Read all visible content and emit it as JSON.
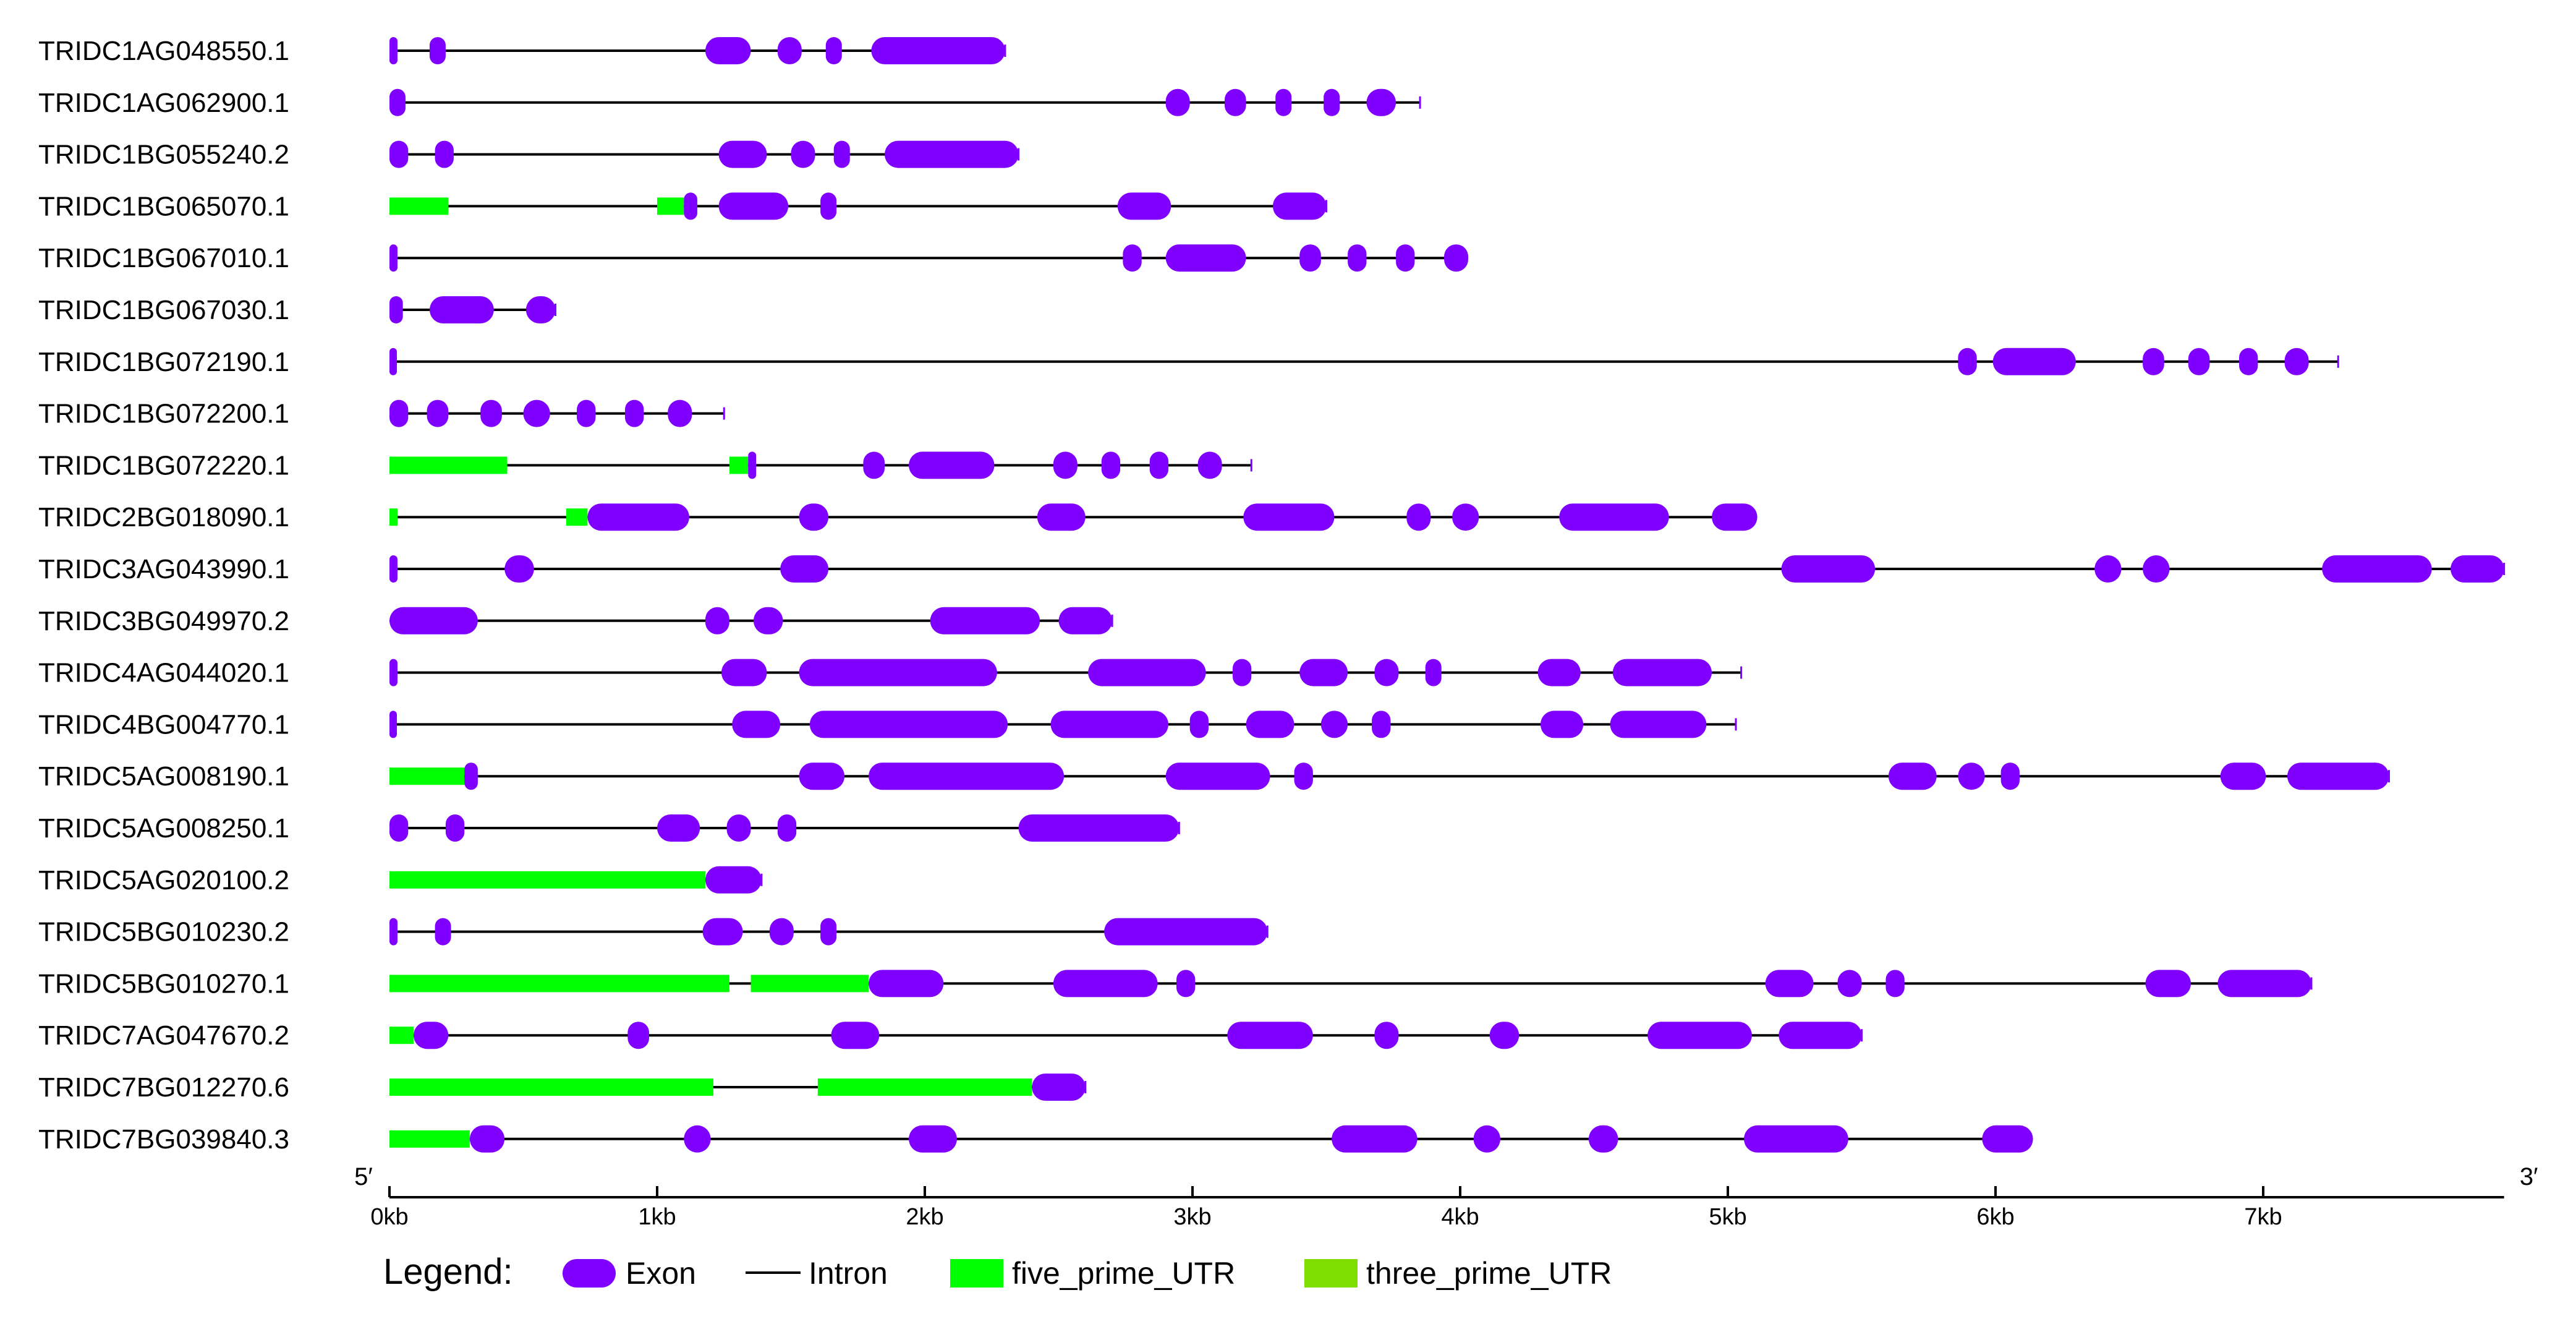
{
  "colors": {
    "exon": "#8000ff",
    "intron": "#000000",
    "five_prime_utr": "#00ff00",
    "three_prime_utr": "#7fdd00"
  },
  "axis": {
    "min_kb": 0,
    "max_kb": 7.9,
    "ticks": [
      {
        "value": 0,
        "label": "0kb"
      },
      {
        "value": 1,
        "label": "1kb"
      },
      {
        "value": 2,
        "label": "2kb"
      },
      {
        "value": 3,
        "label": "3kb"
      },
      {
        "value": 4,
        "label": "4kb"
      },
      {
        "value": 5,
        "label": "5kb"
      },
      {
        "value": 6,
        "label": "6kb"
      },
      {
        "value": 7,
        "label": "7kb"
      }
    ],
    "left_end_label": "5′",
    "right_end_label": "3′"
  },
  "legend": {
    "title": "Legend:",
    "items": [
      {
        "key": "exon",
        "label": "Exon",
        "icon": "exon-swatch"
      },
      {
        "key": "intron",
        "label": "Intron",
        "icon": "intron-line"
      },
      {
        "key": "five_prime_utr",
        "label": "five_prime_UTR",
        "icon": "utr5-swatch"
      },
      {
        "key": "three_prime_utr",
        "label": "three_prime_UTR",
        "icon": "utr3-swatch"
      }
    ]
  },
  "genes": [
    {
      "name": "TRIDC1AG048550.1",
      "length": 2.3,
      "utr5": [],
      "exons": [
        [
          0,
          0.03
        ],
        [
          0.15,
          0.21
        ],
        [
          1.18,
          1.35
        ],
        [
          1.45,
          1.54
        ],
        [
          1.63,
          1.69
        ],
        [
          1.8,
          2.3
        ]
      ]
    },
    {
      "name": "TRIDC1AG062900.1",
      "length": 3.85,
      "utr5": [],
      "exons": [
        [
          0,
          0.06
        ],
        [
          2.9,
          2.99
        ],
        [
          3.12,
          3.2
        ],
        [
          3.31,
          3.37
        ],
        [
          3.49,
          3.55
        ],
        [
          3.65,
          3.76
        ]
      ]
    },
    {
      "name": "TRIDC1BG055240.2",
      "length": 2.35,
      "utr5": [],
      "exons": [
        [
          0,
          0.07
        ],
        [
          0.17,
          0.24
        ],
        [
          1.23,
          1.41
        ],
        [
          1.5,
          1.59
        ],
        [
          1.66,
          1.72
        ],
        [
          1.85,
          2.35
        ]
      ]
    },
    {
      "name": "TRIDC1BG065070.1",
      "length": 3.5,
      "utr5": [
        [
          0,
          0.22
        ],
        [
          1.0,
          1.1
        ]
      ],
      "exons": [
        [
          1.1,
          1.15
        ],
        [
          1.23,
          1.49
        ],
        [
          1.61,
          1.67
        ],
        [
          2.72,
          2.92
        ],
        [
          3.3,
          3.5
        ]
      ]
    },
    {
      "name": "TRIDC1BG067010.1",
      "length": 4.0,
      "utr5": [],
      "exons": [
        [
          0,
          0.03
        ],
        [
          2.74,
          2.81
        ],
        [
          2.9,
          3.2
        ],
        [
          3.4,
          3.48
        ],
        [
          3.58,
          3.65
        ],
        [
          3.76,
          3.83
        ],
        [
          3.94,
          4.03
        ]
      ]
    },
    {
      "name": "TRIDC1BG067030.1",
      "length": 0.62,
      "utr5": [],
      "exons": [
        [
          0,
          0.05
        ],
        [
          0.15,
          0.39
        ],
        [
          0.51,
          0.62
        ]
      ]
    },
    {
      "name": "TRIDC1BG072190.1",
      "length": 7.28,
      "utr5": [],
      "exons": [
        [
          0,
          0.01
        ],
        [
          5.86,
          5.93
        ],
        [
          5.99,
          6.3
        ],
        [
          6.55,
          6.63
        ],
        [
          6.72,
          6.8
        ],
        [
          6.91,
          6.98
        ],
        [
          7.08,
          7.17
        ]
      ]
    },
    {
      "name": "TRIDC1BG072200.1",
      "length": 1.25,
      "utr5": [],
      "exons": [
        [
          0,
          0.07
        ],
        [
          0.14,
          0.22
        ],
        [
          0.34,
          0.42
        ],
        [
          0.5,
          0.6
        ],
        [
          0.7,
          0.77
        ],
        [
          0.88,
          0.95
        ],
        [
          1.04,
          1.13
        ]
      ]
    },
    {
      "name": "TRIDC1BG072220.1",
      "length": 3.22,
      "utr5": [
        [
          0,
          0.44
        ],
        [
          1.27,
          1.34
        ]
      ],
      "exons": [
        [
          1.34,
          1.37
        ],
        [
          1.77,
          1.85
        ],
        [
          1.94,
          2.26
        ],
        [
          2.48,
          2.57
        ],
        [
          2.66,
          2.73
        ],
        [
          2.84,
          2.91
        ],
        [
          3.02,
          3.11
        ]
      ]
    },
    {
      "name": "TRIDC2BG018090.1",
      "length": 5.1,
      "utr5": [
        [
          0,
          0.03
        ],
        [
          0.66,
          0.74
        ]
      ],
      "exons": [
        [
          0.74,
          1.12
        ],
        [
          1.53,
          1.64
        ],
        [
          2.42,
          2.6
        ],
        [
          3.19,
          3.53
        ],
        [
          3.8,
          3.89
        ],
        [
          3.97,
          4.07
        ],
        [
          4.37,
          4.78
        ],
        [
          4.94,
          5.11
        ]
      ]
    },
    {
      "name": "TRIDC3AG043990.1",
      "length": 7.9,
      "utr5": [],
      "exons": [
        [
          0,
          0.03
        ],
        [
          0.43,
          0.54
        ],
        [
          1.46,
          1.64
        ],
        [
          5.2,
          5.55
        ],
        [
          6.37,
          6.47
        ],
        [
          6.55,
          6.65
        ],
        [
          7.22,
          7.63
        ],
        [
          7.7,
          7.9
        ]
      ]
    },
    {
      "name": "TRIDC3BG049970.2",
      "length": 2.7,
      "utr5": [],
      "exons": [
        [
          0,
          0.33
        ],
        [
          1.18,
          1.27
        ],
        [
          1.36,
          1.47
        ],
        [
          2.02,
          2.43
        ],
        [
          2.5,
          2.7
        ]
      ]
    },
    {
      "name": "TRIDC4AG044020.1",
      "length": 5.05,
      "utr5": [],
      "exons": [
        [
          0,
          0.03
        ],
        [
          1.24,
          1.41
        ],
        [
          1.53,
          2.27
        ],
        [
          2.61,
          3.05
        ],
        [
          3.15,
          3.22
        ],
        [
          3.4,
          3.58
        ],
        [
          3.68,
          3.77
        ],
        [
          3.87,
          3.93
        ],
        [
          4.29,
          4.45
        ],
        [
          4.57,
          4.94
        ]
      ]
    },
    {
      "name": "TRIDC4BG004770.1",
      "length": 5.03,
      "utr5": [],
      "exons": [
        [
          0,
          0.01
        ],
        [
          1.28,
          1.46
        ],
        [
          1.57,
          2.31
        ],
        [
          2.47,
          2.91
        ],
        [
          2.99,
          3.06
        ],
        [
          3.2,
          3.38
        ],
        [
          3.48,
          3.58
        ],
        [
          3.67,
          3.74
        ],
        [
          4.3,
          4.46
        ],
        [
          4.56,
          4.92
        ]
      ]
    },
    {
      "name": "TRIDC5AG008190.1",
      "length": 7.47,
      "utr5": [
        [
          0,
          0.28
        ]
      ],
      "exons": [
        [
          0.28,
          0.33
        ],
        [
          1.53,
          1.7
        ],
        [
          1.79,
          2.52
        ],
        [
          2.9,
          3.29
        ],
        [
          3.38,
          3.45
        ],
        [
          5.6,
          5.78
        ],
        [
          5.86,
          5.96
        ],
        [
          6.02,
          6.09
        ],
        [
          6.84,
          7.01
        ],
        [
          7.09,
          7.47
        ]
      ]
    },
    {
      "name": "TRIDC5AG008250.1",
      "length": 2.95,
      "utr5": [],
      "exons": [
        [
          0,
          0.07
        ],
        [
          0.21,
          0.28
        ],
        [
          1.0,
          1.16
        ],
        [
          1.26,
          1.35
        ],
        [
          1.45,
          1.52
        ],
        [
          2.35,
          2.95
        ]
      ]
    },
    {
      "name": "TRIDC5AG020100.2",
      "length": 1.39,
      "utr5": [
        [
          0,
          1.18
        ]
      ],
      "exons": [
        [
          1.18,
          1.39
        ]
      ]
    },
    {
      "name": "TRIDC5BG010230.2",
      "length": 3.28,
      "utr5": [],
      "exons": [
        [
          0,
          0.03
        ],
        [
          0.17,
          0.23
        ],
        [
          1.17,
          1.32
        ],
        [
          1.42,
          1.51
        ],
        [
          1.61,
          1.67
        ],
        [
          2.67,
          3.28
        ]
      ]
    },
    {
      "name": "TRIDC5BG010270.1",
      "length": 7.18,
      "utr5": [
        [
          0,
          1.27
        ],
        [
          1.35,
          1.79
        ]
      ],
      "exons": [
        [
          1.79,
          2.07
        ],
        [
          2.48,
          2.87
        ],
        [
          2.94,
          3.01
        ],
        [
          5.14,
          5.32
        ],
        [
          5.41,
          5.5
        ],
        [
          5.59,
          5.66
        ],
        [
          6.56,
          6.73
        ],
        [
          6.83,
          7.18
        ]
      ]
    },
    {
      "name": "TRIDC7AG047670.2",
      "length": 5.5,
      "utr5": [
        [
          0,
          0.09
        ]
      ],
      "exons": [
        [
          0.09,
          0.22
        ],
        [
          0.89,
          0.97
        ],
        [
          1.65,
          1.83
        ],
        [
          3.13,
          3.45
        ],
        [
          3.68,
          3.77
        ],
        [
          4.11,
          4.22
        ],
        [
          4.7,
          5.09
        ],
        [
          5.19,
          5.5
        ]
      ]
    },
    {
      "name": "TRIDC7BG012270.6",
      "length": 2.6,
      "utr5": [
        [
          0,
          1.21
        ],
        [
          1.6,
          2.4
        ]
      ],
      "exons": [
        [
          2.4,
          2.6
        ]
      ]
    },
    {
      "name": "TRIDC7BG039840.3",
      "length": 6.1,
      "utr5": [
        [
          0,
          0.3
        ]
      ],
      "exons": [
        [
          0.3,
          0.43
        ],
        [
          1.1,
          1.2
        ],
        [
          1.94,
          2.12
        ],
        [
          3.52,
          3.84
        ],
        [
          4.05,
          4.15
        ],
        [
          4.48,
          4.59
        ],
        [
          5.06,
          5.45
        ],
        [
          5.95,
          6.14
        ]
      ]
    }
  ]
}
